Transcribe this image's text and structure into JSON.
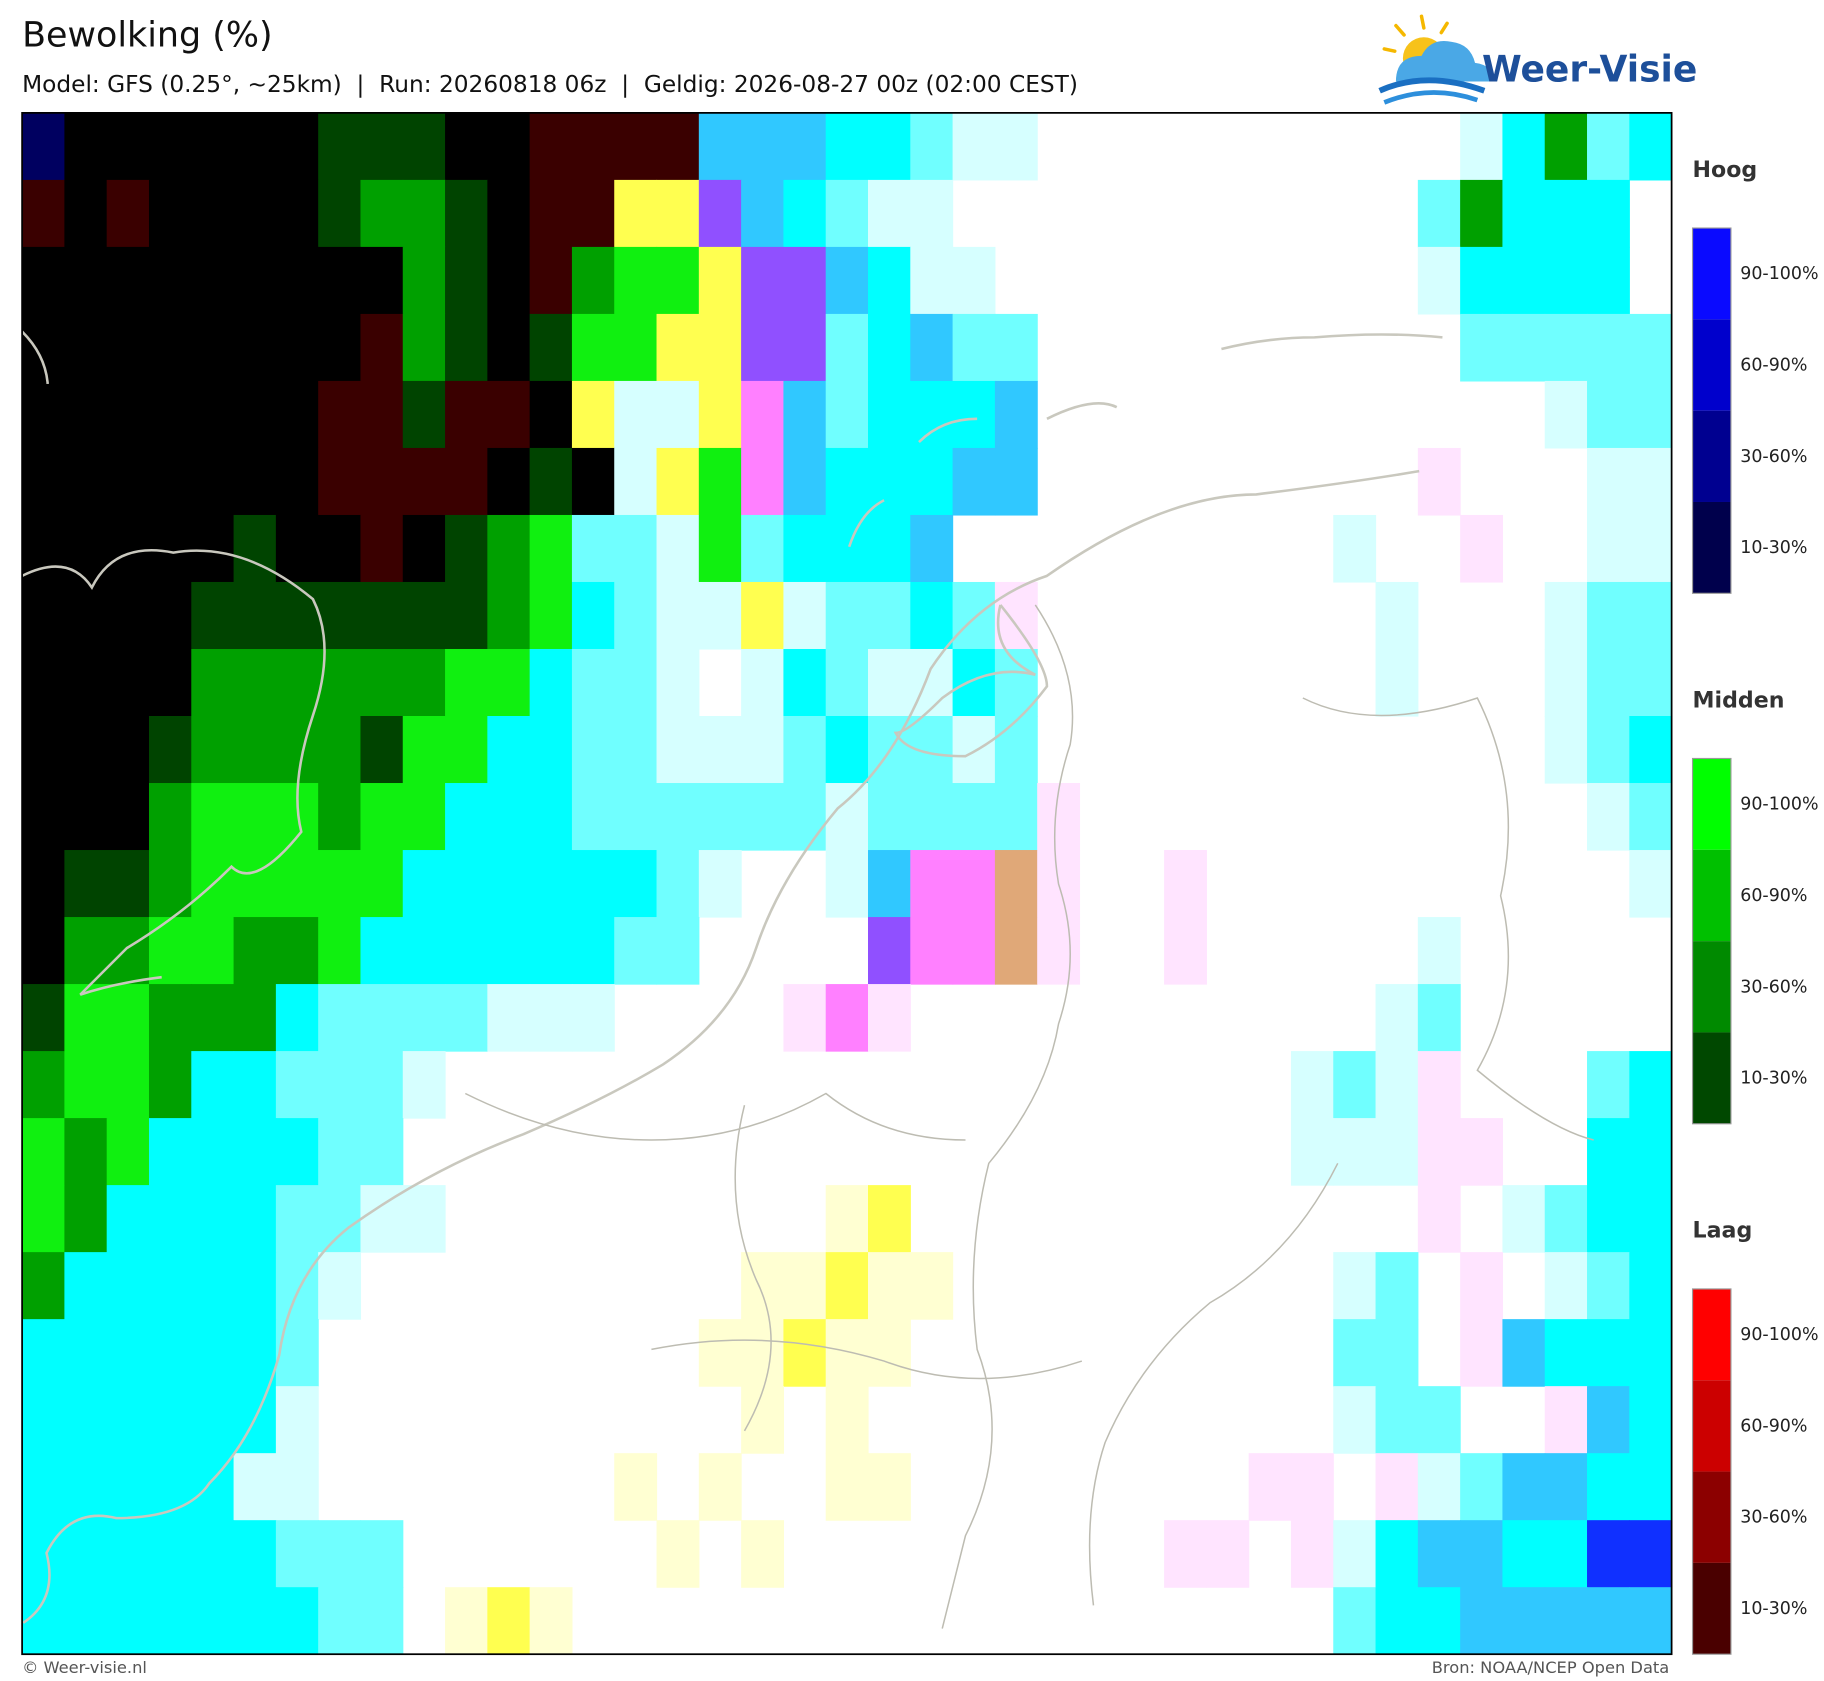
{
  "header": {
    "title": "Bewolking (%)",
    "subtitle": "Model: GFS (0.25°, ~25km)  |  Run: 20260818 06z  |  Geldig: 2026-08-27 00z (02:00 CEST)"
  },
  "logo": {
    "text": "Weer-Visie"
  },
  "legends": [
    {
      "title": "Hoog",
      "labels": [
        "90-100%",
        "60-90%",
        "30-60%",
        "10-30%"
      ]
    },
    {
      "title": "Midden",
      "labels": [
        "90-100%",
        "60-90%",
        "30-60%",
        "10-30%"
      ]
    },
    {
      "title": "Laag",
      "labels": [
        "90-100%",
        "60-90%",
        "30-60%",
        "10-30%"
      ]
    }
  ],
  "footer": {
    "left": "© Weer-visie.nl",
    "right": "Bron: NOAA/NCEP Open Data"
  }
}
